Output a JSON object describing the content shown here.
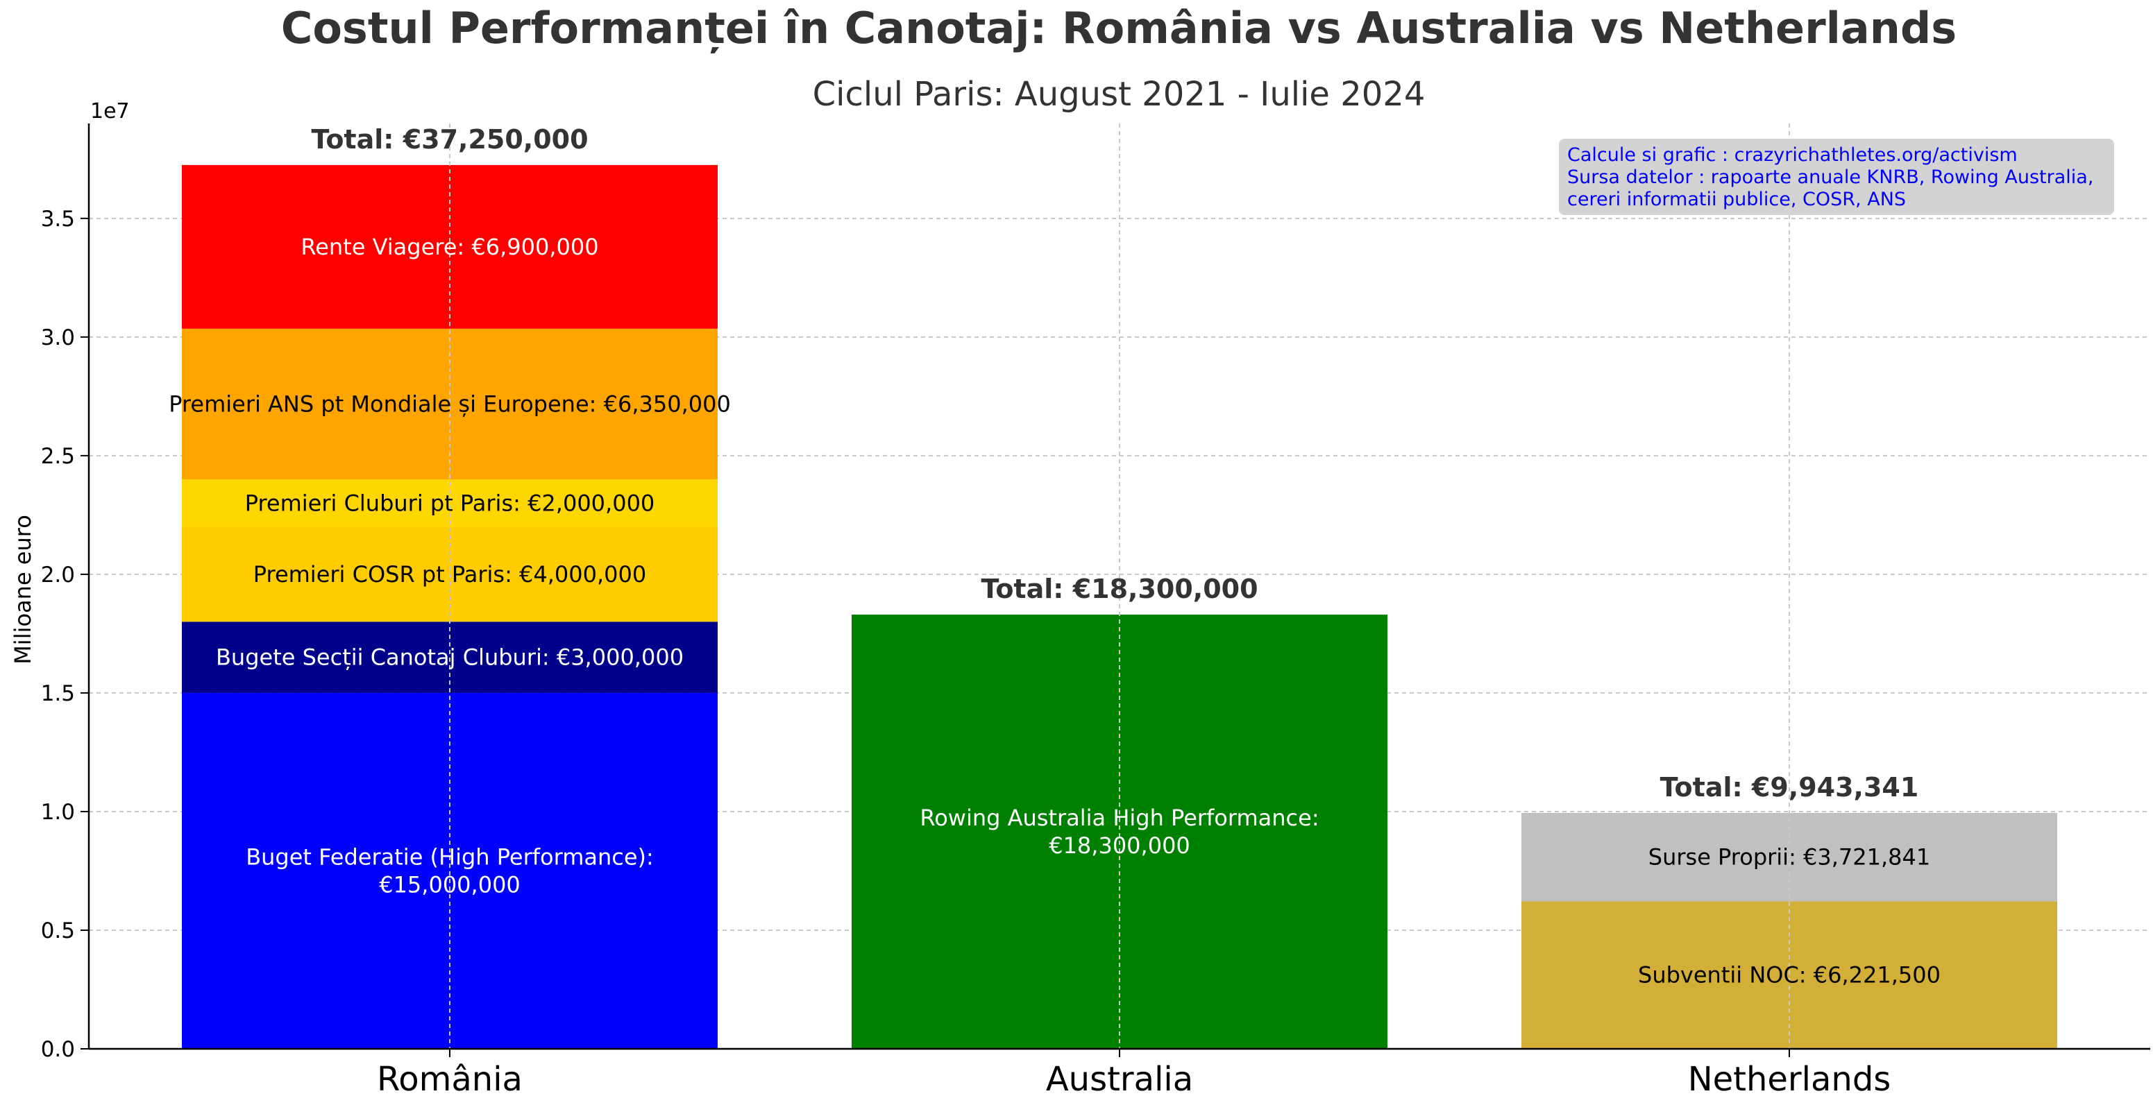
{
  "chart_data": {
    "type": "bar",
    "stacked": true,
    "title": "Costul Performanței în Canotaj: România vs Australia vs Netherlands",
    "subtitle": "Ciclul Paris: August 2021 - Iulie 2024",
    "ylabel": "Milioane euro",
    "y_offset_label": "1e7",
    "ylim": [
      0,
      39000000
    ],
    "yticks": [
      0,
      5000000,
      10000000,
      15000000,
      20000000,
      25000000,
      30000000,
      35000000
    ],
    "ytick_labels": [
      "0.0",
      "0.5",
      "1.0",
      "1.5",
      "2.0",
      "2.5",
      "3.0",
      "3.5"
    ],
    "grid": true,
    "categories": [
      "România",
      "Australia",
      "Netherlands"
    ],
    "bars": [
      {
        "category": "România",
        "total_label": "Total: €37,250,000",
        "segments": [
          {
            "value": 15000000,
            "color": "#0000ff",
            "text_color": "#ffffff",
            "label_lines": [
              "Buget Federatie (High Performance):",
              "€15,000,000"
            ]
          },
          {
            "value": 3000000,
            "color": "#00008b",
            "text_color": "#ffffff",
            "label_lines": [
              "Bugete Secții Canotaj Cluburi: €3,000,000"
            ]
          },
          {
            "value": 4000000,
            "color": "#ffcc00",
            "text_color": "#000000",
            "label_lines": [
              "Premieri COSR pt Paris: €4,000,000"
            ]
          },
          {
            "value": 2000000,
            "color": "#ffd700",
            "text_color": "#000000",
            "label_lines": [
              "Premieri Cluburi pt Paris: €2,000,000"
            ]
          },
          {
            "value": 6350000,
            "color": "#ffa500",
            "text_color": "#000000",
            "label_lines": [
              "Premieri ANS pt Mondiale și Europene: €6,350,000"
            ]
          },
          {
            "value": 6900000,
            "color": "#ff0000",
            "text_color": "#ffffff",
            "label_lines": [
              "Rente Viagere: €6,900,000"
            ]
          }
        ]
      },
      {
        "category": "Australia",
        "total_label": "Total: €18,300,000",
        "segments": [
          {
            "value": 18300000,
            "color": "#008000",
            "text_color": "#ffffff",
            "label_lines": [
              "Rowing Australia High Performance:",
              "€18,300,000"
            ]
          }
        ]
      },
      {
        "category": "Netherlands",
        "total_label": "Total: €9,943,341",
        "segments": [
          {
            "value": 6221500,
            "color": "#d4af37",
            "text_color": "#000000",
            "label_lines": [
              "Subventii NOC: €6,221,500"
            ]
          },
          {
            "value": 3721841,
            "color": "#c0c0c0",
            "text_color": "#000000",
            "label_lines": [
              "Surse Proprii: €3,721,841"
            ]
          }
        ]
      }
    ],
    "annotation": {
      "lines": [
        "Calcule si grafic : crazyrichathletes.org/activism",
        "Sursa datelor : rapoarte anuale KNRB, Rowing Australia,",
        "cereri informatii publice, COSR, ANS"
      ],
      "placement": "top-right",
      "box_color": "#d3d3d3",
      "text_color": "#0000ff"
    }
  }
}
